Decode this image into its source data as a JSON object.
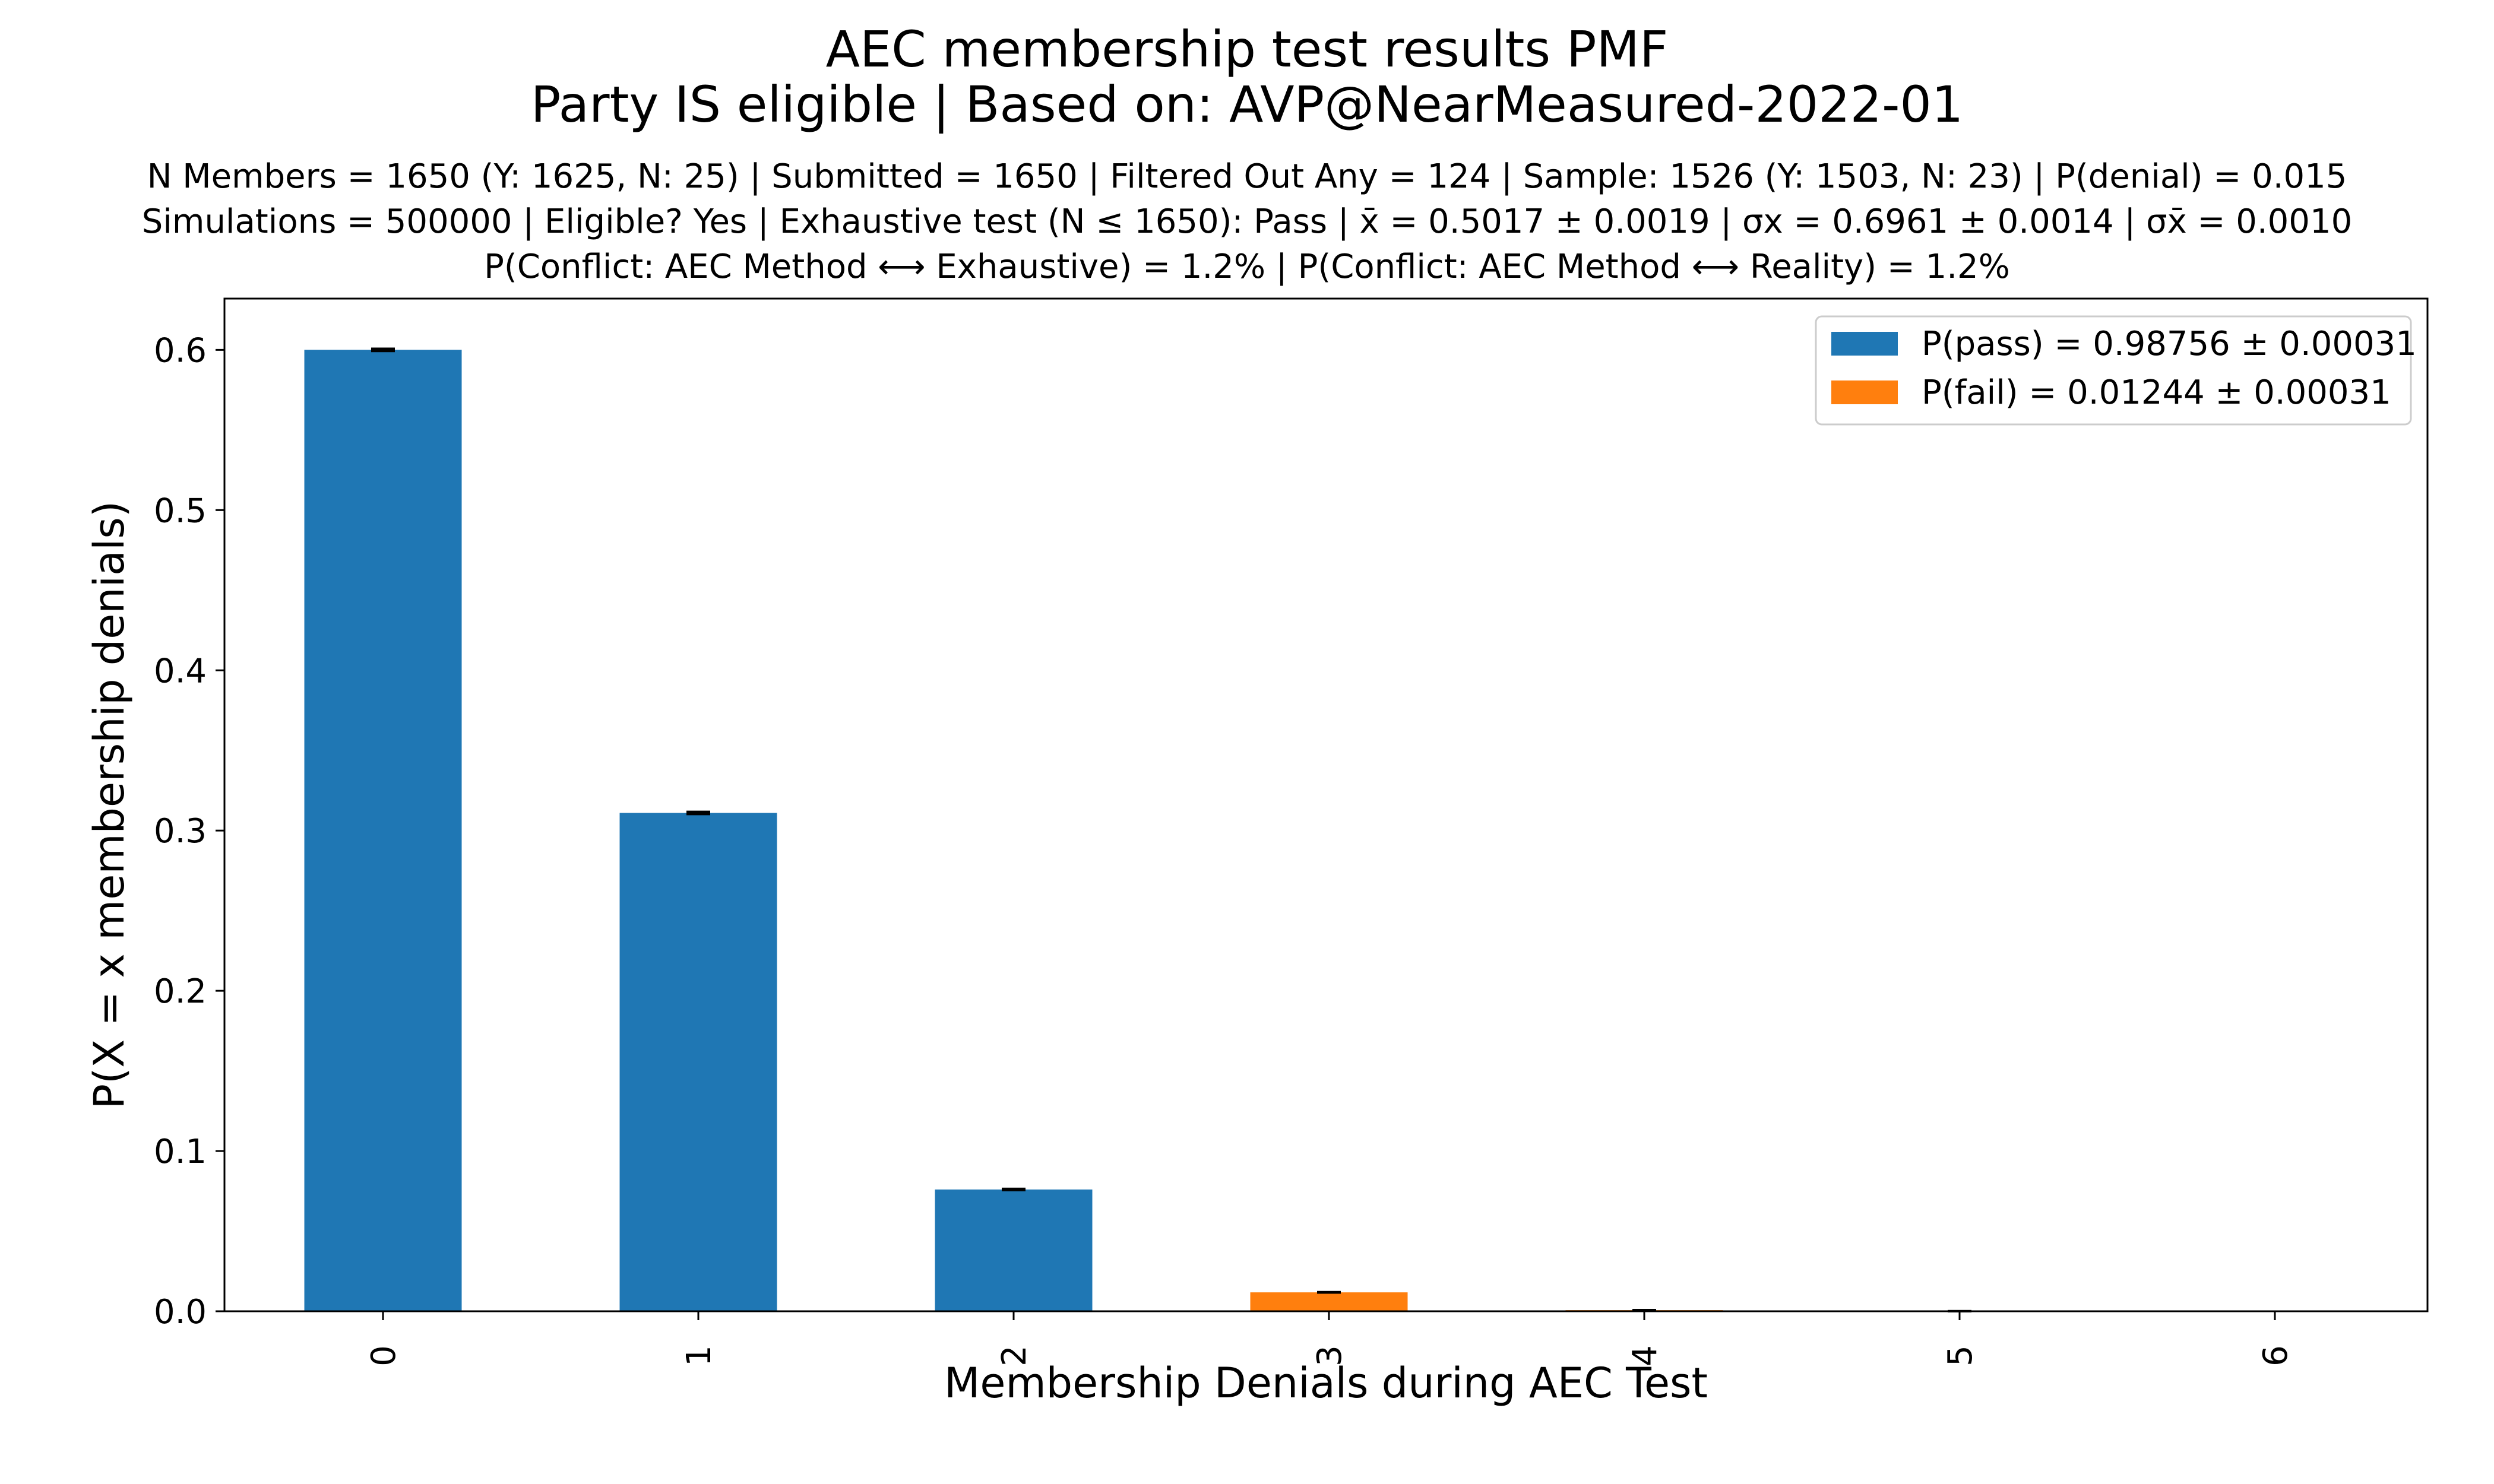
{
  "chart_data": {
    "type": "bar",
    "title_line1": "AEC membership test results PMF",
    "title_line2": "Party IS eligible | Based on: AVP@NearMeasured-2022-01",
    "subtitle_line1": "N Members = 1650 (Y: 1625, N: 25) | Submitted = 1650 | Filtered Out Any = 124 | Sample: 1526 (Y: 1503, N: 23) | P(denial) = 0.015",
    "subtitle_line2": "Simulations = 500000 | Eligible? Yes | Exhaustive test (N ≤ 1650): Pass | x̄ = 0.5017 ± 0.0019 | σx = 0.6961 ± 0.0014 | σx̄ = 0.0010",
    "subtitle_line3": "P(Conflict: AEC Method ⟷ Exhaustive) = 1.2% | P(Conflict: AEC Method ⟷ Reality) = 1.2%",
    "xlabel": "Membership Denials during AEC Test",
    "ylabel": "P(X = x membership denials)",
    "categories": [
      "0",
      "1",
      "2",
      "3",
      "4",
      "5",
      "6"
    ],
    "values": [
      0.6,
      0.311,
      0.076,
      0.0118,
      0.0007,
      3e-05,
      0.0
    ],
    "errors": [
      0.0007,
      0.0007,
      0.0004,
      0.00015,
      4e-05,
      0.0,
      0.0
    ],
    "bar_series": [
      "pass",
      "pass",
      "pass",
      "fail",
      "fail",
      "fail",
      "fail"
    ],
    "ylim": [
      0,
      0.632
    ],
    "yticks": [
      "0.0",
      "0.1",
      "0.2",
      "0.3",
      "0.4",
      "0.5",
      "0.6"
    ],
    "ytick_values": [
      0,
      0.1,
      0.2,
      0.3,
      0.4,
      0.5,
      0.6
    ],
    "grid": false,
    "legend_position": "top-right",
    "series": [
      {
        "key": "pass",
        "name": "P(pass) = 0.98756 ± 0.00031",
        "color": "#1f77b4"
      },
      {
        "key": "fail",
        "name": "P(fail) = 0.01244 ± 0.00031",
        "color": "#ff7f0e"
      }
    ]
  }
}
